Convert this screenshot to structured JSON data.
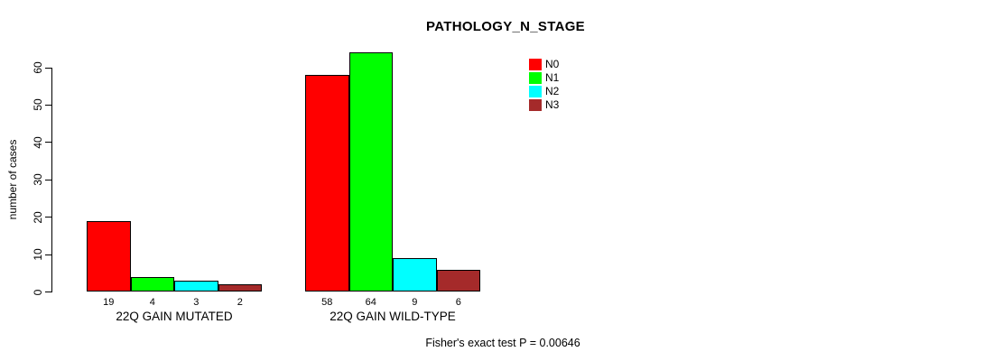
{
  "chart_data": {
    "type": "bar",
    "title": "PATHOLOGY_N_STAGE",
    "ylabel": "number of cases",
    "xlabel": "",
    "ylim": [
      0,
      60
    ],
    "yticks": [
      0,
      10,
      20,
      30,
      40,
      50,
      60
    ],
    "grid": false,
    "legend_position": "top-right",
    "categories": [
      "22Q GAIN MUTATED",
      "22Q GAIN WILD-TYPE"
    ],
    "series": [
      {
        "name": "N0",
        "color": "#ff0000",
        "values": [
          19,
          58
        ]
      },
      {
        "name": "N1",
        "color": "#00ff00",
        "values": [
          4,
          64
        ]
      },
      {
        "name": "N2",
        "color": "#00ffff",
        "values": [
          3,
          9
        ]
      },
      {
        "name": "N3",
        "color": "#a52a2a",
        "values": [
          2,
          6
        ]
      }
    ],
    "bar_value_labels": true,
    "footer": "Fisher's exact test P = 0.00646"
  }
}
